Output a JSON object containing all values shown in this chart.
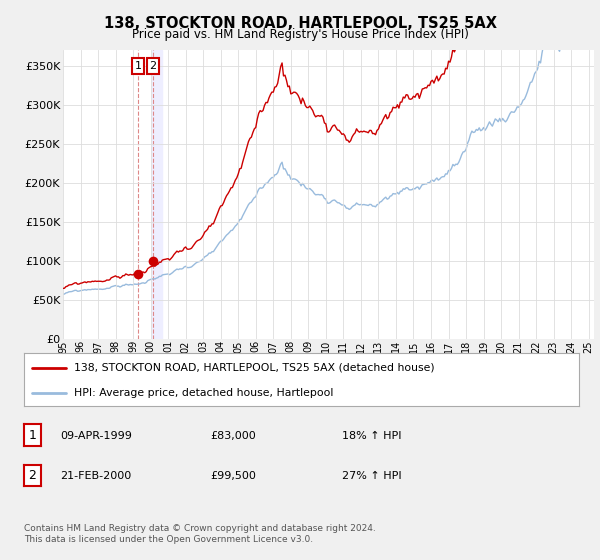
{
  "title": "138, STOCKTON ROAD, HARTLEPOOL, TS25 5AX",
  "subtitle": "Price paid vs. HM Land Registry's House Price Index (HPI)",
  "ylabel_ticks": [
    "£0",
    "£50K",
    "£100K",
    "£150K",
    "£200K",
    "£250K",
    "£300K",
    "£350K"
  ],
  "ytick_values": [
    0,
    50000,
    100000,
    150000,
    200000,
    250000,
    300000,
    350000
  ],
  "ylim": [
    0,
    370000
  ],
  "xlim_start": 1995.0,
  "xlim_end": 2025.3,
  "red_color": "#cc0000",
  "blue_color": "#99bbdd",
  "vline_color": "#ddaaaa",
  "vband_color": "#eeeeff",
  "marker1_x": 1999.27,
  "marker1_y": 83000,
  "marker2_x": 2000.13,
  "marker2_y": 99500,
  "legend_line1": "138, STOCKTON ROAD, HARTLEPOOL, TS25 5AX (detached house)",
  "legend_line2": "HPI: Average price, detached house, Hartlepool",
  "table_row1": [
    "1",
    "09-APR-1999",
    "£83,000",
    "18% ↑ HPI"
  ],
  "table_row2": [
    "2",
    "21-FEB-2000",
    "£99,500",
    "27% ↑ HPI"
  ],
  "footer": "Contains HM Land Registry data © Crown copyright and database right 2024.\nThis data is licensed under the Open Government Licence v3.0.",
  "background_color": "#f0f0f0",
  "plot_bg_color": "#ffffff"
}
